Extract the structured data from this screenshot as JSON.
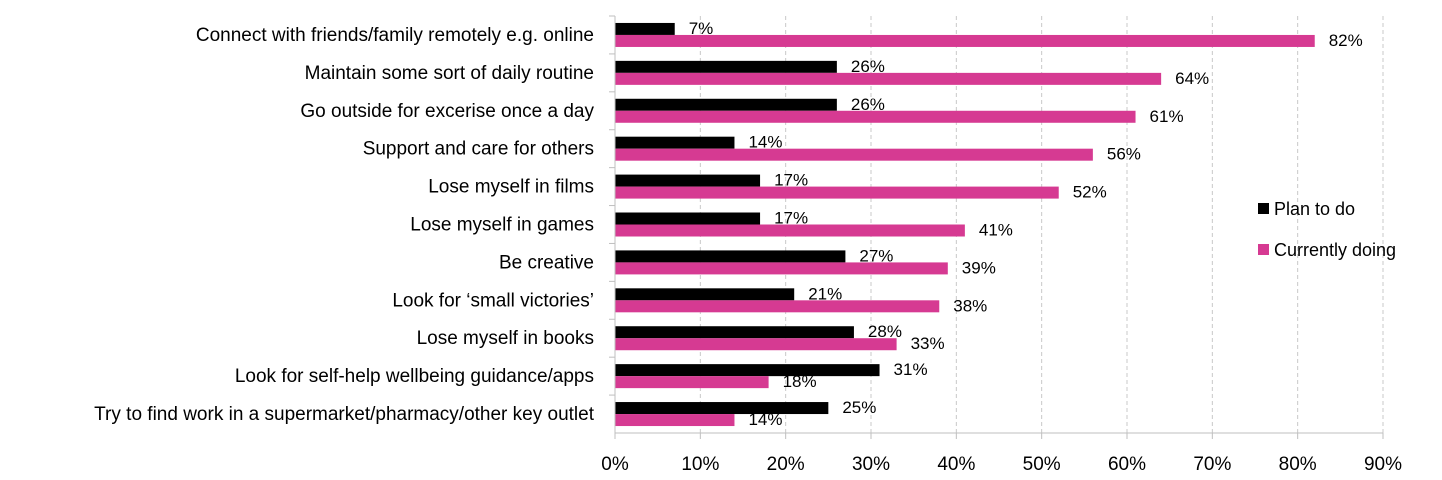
{
  "chart_data": {
    "type": "bar",
    "orientation": "horizontal",
    "categories": [
      "Connect with friends/family remotely e.g. online",
      "Maintain some sort of daily routine ",
      "Go outside for excerise once a day",
      "Support and care for others",
      "Lose myself in films ",
      "Lose myself in games",
      "Be creative",
      "Look for ‘small victories’",
      "Lose myself in books",
      "Look for self-help wellbeing guidance/apps",
      "Try to find work in a supermarket/pharmacy/other key outlet"
    ],
    "series": [
      {
        "name": "Plan to do",
        "color": "#000000",
        "values": [
          7,
          26,
          26,
          14,
          17,
          17,
          27,
          21,
          28,
          31,
          25
        ]
      },
      {
        "name": "Currently doing",
        "color": "#d63a92",
        "values": [
          82,
          64,
          61,
          56,
          52,
          41,
          39,
          38,
          33,
          18,
          14
        ]
      }
    ],
    "value_unit": "%",
    "xlim": [
      0,
      90
    ],
    "xticks": [
      0,
      10,
      20,
      30,
      40,
      50,
      60,
      70,
      80,
      90
    ],
    "xtick_labels": [
      "0%",
      "10%",
      "20%",
      "30%",
      "40%",
      "50%",
      "60%",
      "70%",
      "80%",
      "90%"
    ],
    "grid": "vertical dashed",
    "legend_position": "right",
    "title": "",
    "xlabel": "",
    "ylabel": ""
  }
}
